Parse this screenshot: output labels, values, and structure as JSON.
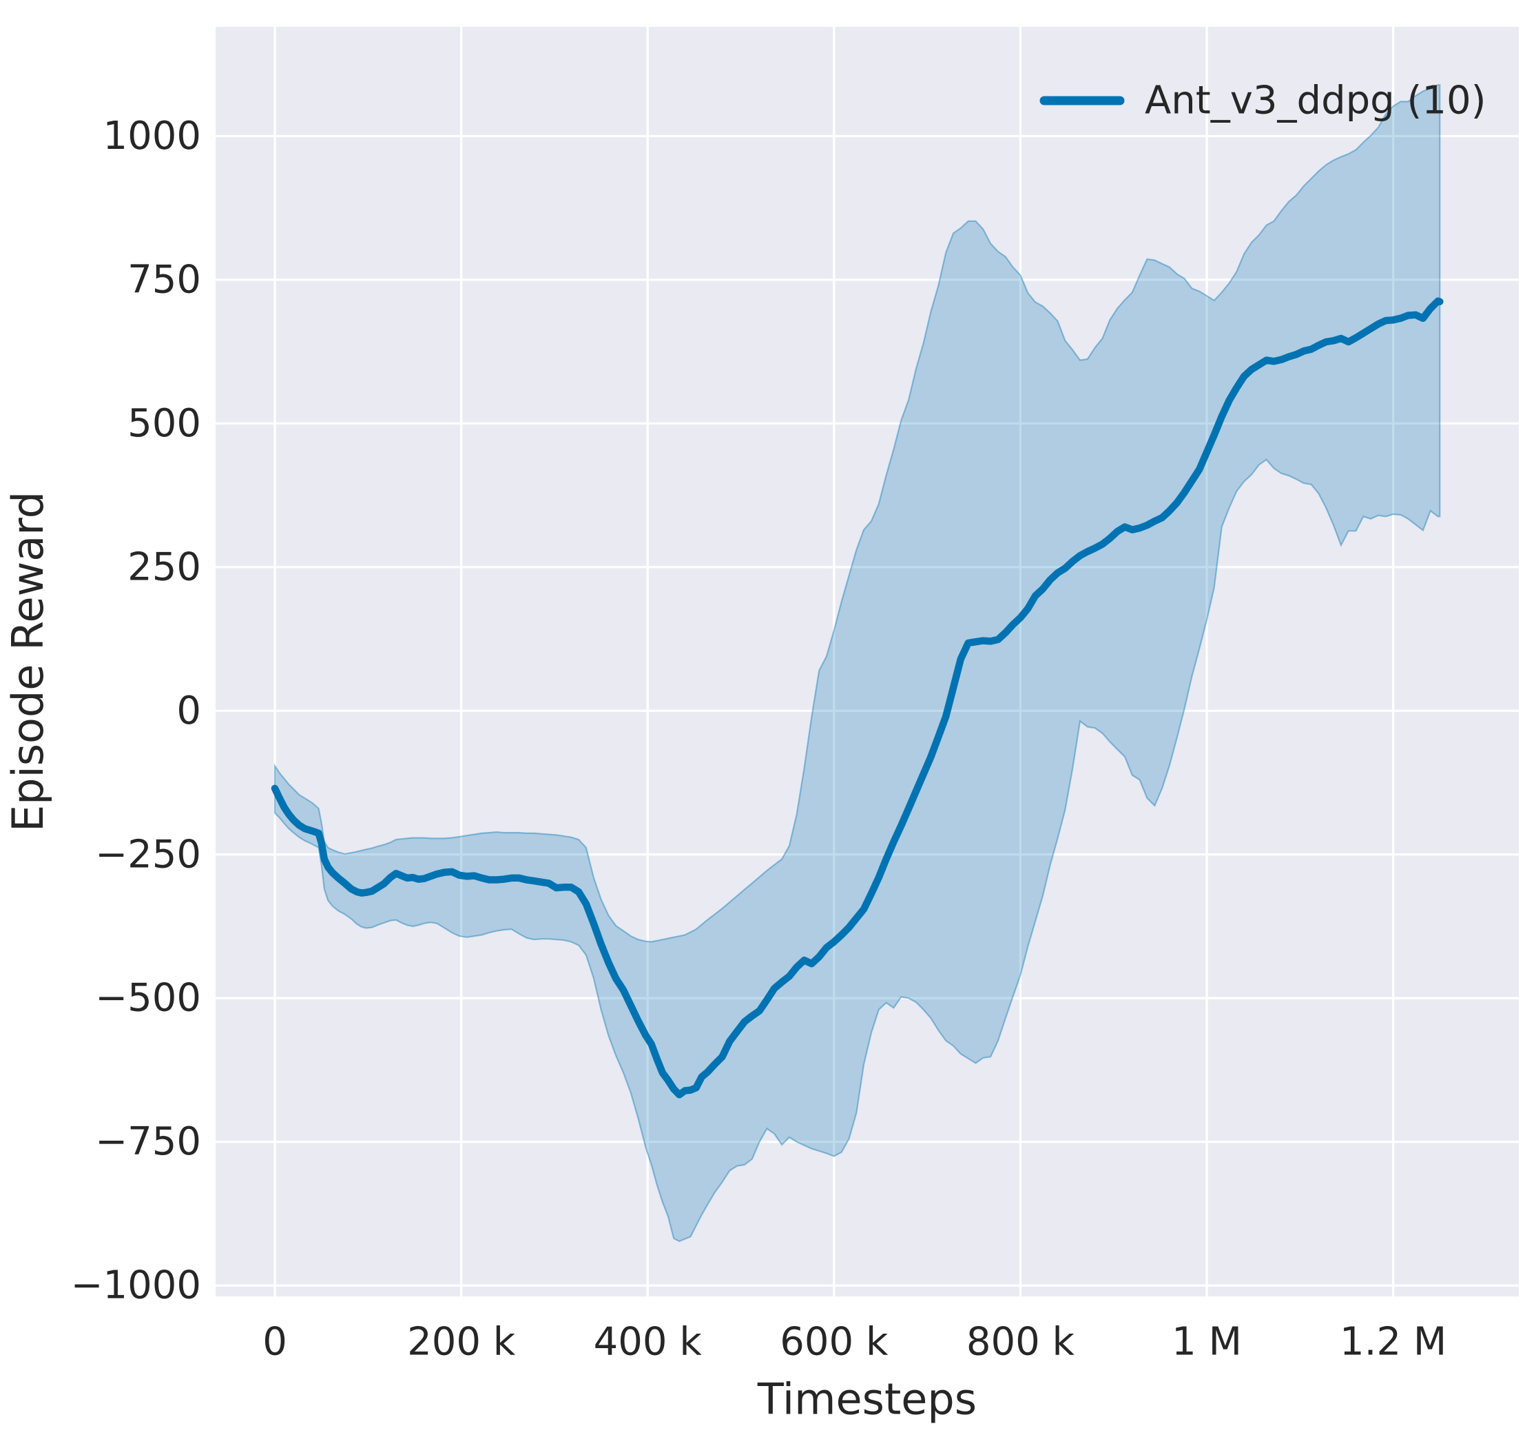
{
  "colors": {
    "figure_bg": "#ffffff",
    "plot_bg": "#eaeaf2",
    "grid": "#ffffff",
    "line": "#0173b2",
    "band_fill": "rgba(1,115,178,0.25)",
    "band_edge": "rgba(1,115,178,0.40)",
    "text": "#262626"
  },
  "chart_data": {
    "type": "line",
    "title": "",
    "xlabel": "Timesteps",
    "ylabel": "Episode Reward",
    "legend": [
      {
        "label": "Ant_v3_ddpg (10)",
        "color": "#0173b2"
      }
    ],
    "legend_position": "upper right",
    "grid": true,
    "x_unit": "thousand timesteps",
    "xlim_k": [
      -63.6,
      1334.8
    ],
    "ylim": [
      -1019,
      1190
    ],
    "x_ticks": [
      {
        "v": 0,
        "label": "0"
      },
      {
        "v": 200,
        "label": "200 k"
      },
      {
        "v": 400,
        "label": "400 k"
      },
      {
        "v": 600,
        "label": "600 k"
      },
      {
        "v": 800,
        "label": "800 k"
      },
      {
        "v": 1000,
        "label": "1 M"
      },
      {
        "v": 1200,
        "label": "1.2 M"
      }
    ],
    "y_ticks": [
      {
        "v": 1000,
        "label": "1000"
      },
      {
        "v": 750,
        "label": "750"
      },
      {
        "v": 500,
        "label": "500"
      },
      {
        "v": 250,
        "label": "250"
      },
      {
        "v": 0,
        "label": "0"
      },
      {
        "v": -250,
        "label": "−250"
      },
      {
        "v": -500,
        "label": "−500"
      },
      {
        "v": -750,
        "label": "−750"
      },
      {
        "v": -1000,
        "label": "−1000"
      }
    ],
    "series_note": "points are [x_in_thousand_timesteps, mean_episode_reward, band_lower, band_upper]",
    "points": [
      [
        0,
        -135,
        -178,
        -96
      ],
      [
        5,
        -152,
        -186,
        -108
      ],
      [
        10,
        -168,
        -196,
        -118
      ],
      [
        15,
        -180,
        -205,
        -128
      ],
      [
        20,
        -190,
        -212,
        -136
      ],
      [
        26,
        -199,
        -220,
        -146
      ],
      [
        32,
        -205,
        -226,
        -152
      ],
      [
        40,
        -209,
        -232,
        -160
      ],
      [
        47,
        -213,
        -238,
        -170
      ],
      [
        50,
        -230,
        -268,
        -195
      ],
      [
        53,
        -258,
        -310,
        -228
      ],
      [
        57,
        -272,
        -330,
        -238
      ],
      [
        62,
        -282,
        -340,
        -242
      ],
      [
        68,
        -291,
        -348,
        -246
      ],
      [
        75,
        -300,
        -354,
        -249
      ],
      [
        82,
        -310,
        -362,
        -247
      ],
      [
        88,
        -315,
        -371,
        -245
      ],
      [
        93,
        -317,
        -376,
        -243
      ],
      [
        98,
        -316,
        -378,
        -241
      ],
      [
        104,
        -314,
        -377,
        -239
      ],
      [
        110,
        -308,
        -373,
        -236
      ],
      [
        117,
        -301,
        -369,
        -233
      ],
      [
        124,
        -290,
        -365,
        -229
      ],
      [
        130,
        -283,
        -364,
        -224
      ],
      [
        136,
        -287,
        -369,
        -223
      ],
      [
        142,
        -291,
        -373,
        -222
      ],
      [
        148,
        -290,
        -375,
        -221
      ],
      [
        154,
        -293,
        -373,
        -221
      ],
      [
        160,
        -292,
        -370,
        -221
      ],
      [
        167,
        -288,
        -368,
        -222
      ],
      [
        174,
        -284,
        -370,
        -222
      ],
      [
        182,
        -281,
        -378,
        -222
      ],
      [
        190,
        -280,
        -386,
        -221
      ],
      [
        198,
        -286,
        -392,
        -219
      ],
      [
        206,
        -288,
        -394,
        -217
      ],
      [
        214,
        -287,
        -392,
        -215
      ],
      [
        222,
        -291,
        -390,
        -213
      ],
      [
        230,
        -294,
        -386,
        -212
      ],
      [
        238,
        -294,
        -383,
        -211
      ],
      [
        246,
        -293,
        -381,
        -212
      ],
      [
        254,
        -291,
        -380,
        -212
      ],
      [
        262,
        -291,
        -388,
        -212
      ],
      [
        270,
        -294,
        -395,
        -213
      ],
      [
        278,
        -296,
        -398,
        -213
      ],
      [
        286,
        -298,
        -397,
        -214
      ],
      [
        294,
        -300,
        -397,
        -215
      ],
      [
        302,
        -308,
        -398,
        -216
      ],
      [
        310,
        -307,
        -399,
        -218
      ],
      [
        318,
        -307,
        -402,
        -220
      ],
      [
        326,
        -315,
        -408,
        -224
      ],
      [
        334,
        -336,
        -425,
        -238
      ],
      [
        342,
        -370,
        -465,
        -290
      ],
      [
        350,
        -406,
        -520,
        -328
      ],
      [
        358,
        -438,
        -565,
        -356
      ],
      [
        366,
        -466,
        -600,
        -374
      ],
      [
        374,
        -486,
        -630,
        -383
      ],
      [
        382,
        -513,
        -665,
        -392
      ],
      [
        390,
        -540,
        -710,
        -398
      ],
      [
        398,
        -565,
        -760,
        -401
      ],
      [
        404,
        -580,
        -790,
        -402
      ],
      [
        410,
        -606,
        -825,
        -400
      ],
      [
        416,
        -630,
        -855,
        -398
      ],
      [
        422,
        -643,
        -880,
        -396
      ],
      [
        428,
        -658,
        -918,
        -394
      ],
      [
        434,
        -668,
        -923,
        -392
      ],
      [
        440,
        -661,
        -919,
        -390
      ],
      [
        446,
        -660,
        -915,
        -385
      ],
      [
        452,
        -656,
        -896,
        -380
      ],
      [
        458,
        -637,
        -877,
        -372
      ],
      [
        464,
        -629,
        -860,
        -364
      ],
      [
        472,
        -615,
        -838,
        -354
      ],
      [
        480,
        -602,
        -820,
        -344
      ],
      [
        488,
        -575,
        -800,
        -333
      ],
      [
        496,
        -558,
        -792,
        -322
      ],
      [
        504,
        -541,
        -790,
        -311
      ],
      [
        512,
        -531,
        -780,
        -300
      ],
      [
        520,
        -522,
        -750,
        -289
      ],
      [
        528,
        -503,
        -727,
        -278
      ],
      [
        536,
        -483,
        -736,
        -268
      ],
      [
        544,
        -472,
        -755,
        -258
      ],
      [
        552,
        -462,
        -742,
        -235
      ],
      [
        560,
        -446,
        -750,
        -180
      ],
      [
        568,
        -434,
        -756,
        -100
      ],
      [
        576,
        -440,
        -762,
        -10
      ],
      [
        584,
        -428,
        -766,
        70
      ],
      [
        592,
        -412,
        -770,
        95
      ],
      [
        600,
        -402,
        -775,
        140
      ],
      [
        608,
        -390,
        -768,
        190
      ],
      [
        616,
        -377,
        -745,
        235
      ],
      [
        624,
        -361,
        -700,
        280
      ],
      [
        632,
        -345,
        -615,
        315
      ],
      [
        640,
        -318,
        -560,
        330
      ],
      [
        648,
        -290,
        -520,
        360
      ],
      [
        656,
        -258,
        -508,
        410
      ],
      [
        664,
        -228,
        -517,
        455
      ],
      [
        672,
        -200,
        -498,
        505
      ],
      [
        680,
        -170,
        -500,
        541
      ],
      [
        688,
        -140,
        -507,
        595
      ],
      [
        696,
        -110,
        -520,
        640
      ],
      [
        704,
        -80,
        -535,
        695
      ],
      [
        712,
        -45,
        -556,
        740
      ],
      [
        720,
        -10,
        -574,
        797
      ],
      [
        728,
        40,
        -583,
        831
      ],
      [
        736,
        90,
        -597,
        840
      ],
      [
        744,
        118,
        -605,
        852
      ],
      [
        752,
        120,
        -613,
        852
      ],
      [
        760,
        122,
        -604,
        838
      ],
      [
        768,
        121,
        -602,
        813
      ],
      [
        776,
        124,
        -574,
        799
      ],
      [
        784,
        136,
        -535,
        790
      ],
      [
        792,
        150,
        -497,
        772
      ],
      [
        800,
        162,
        -460,
        758
      ],
      [
        808,
        178,
        -410,
        727
      ],
      [
        816,
        200,
        -366,
        711
      ],
      [
        824,
        212,
        -322,
        704
      ],
      [
        832,
        228,
        -268,
        692
      ],
      [
        840,
        240,
        -222,
        678
      ],
      [
        848,
        248,
        -172,
        644
      ],
      [
        856,
        260,
        -100,
        628
      ],
      [
        864,
        270,
        -18,
        610
      ],
      [
        872,
        277,
        -28,
        612
      ],
      [
        880,
        283,
        -30,
        632
      ],
      [
        888,
        290,
        -39,
        648
      ],
      [
        896,
        300,
        -54,
        680
      ],
      [
        904,
        312,
        -67,
        700
      ],
      [
        912,
        320,
        -80,
        715
      ],
      [
        920,
        315,
        -112,
        728
      ],
      [
        928,
        318,
        -120,
        758
      ],
      [
        936,
        323,
        -152,
        786
      ],
      [
        944,
        330,
        -165,
        784
      ],
      [
        952,
        336,
        -135,
        778
      ],
      [
        960,
        348,
        -95,
        772
      ],
      [
        968,
        362,
        -47,
        760
      ],
      [
        976,
        380,
        4,
        752
      ],
      [
        984,
        400,
        60,
        735
      ],
      [
        992,
        420,
        108,
        730
      ],
      [
        1000,
        450,
        158,
        722
      ],
      [
        1008,
        480,
        215,
        714
      ],
      [
        1016,
        512,
        320,
        728
      ],
      [
        1024,
        540,
        353,
        744
      ],
      [
        1032,
        562,
        382,
        764
      ],
      [
        1040,
        582,
        399,
        795
      ],
      [
        1048,
        594,
        411,
        815
      ],
      [
        1056,
        602,
        428,
        828
      ],
      [
        1064,
        610,
        437,
        845
      ],
      [
        1072,
        608,
        422,
        852
      ],
      [
        1080,
        611,
        413,
        870
      ],
      [
        1088,
        616,
        409,
        886
      ],
      [
        1096,
        620,
        403,
        897
      ],
      [
        1104,
        626,
        396,
        913
      ],
      [
        1112,
        629,
        394,
        926
      ],
      [
        1120,
        636,
        378,
        939
      ],
      [
        1128,
        642,
        353,
        950
      ],
      [
        1136,
        644,
        323,
        958
      ],
      [
        1144,
        648,
        288,
        964
      ],
      [
        1152,
        642,
        313,
        969
      ],
      [
        1160,
        649,
        313,
        976
      ],
      [
        1168,
        657,
        338,
        989
      ],
      [
        1176,
        665,
        334,
        1001
      ],
      [
        1184,
        673,
        340,
        1015
      ],
      [
        1192,
        679,
        338,
        1038
      ],
      [
        1200,
        680,
        342,
        1052
      ],
      [
        1208,
        683,
        341,
        1060
      ],
      [
        1216,
        688,
        334,
        1060
      ],
      [
        1224,
        689,
        324,
        1070
      ],
      [
        1232,
        683,
        314,
        1078
      ],
      [
        1240,
        700,
        348,
        1083
      ],
      [
        1248,
        713,
        338,
        1089
      ],
      [
        1250,
        712,
        338,
        1089
      ]
    ]
  }
}
